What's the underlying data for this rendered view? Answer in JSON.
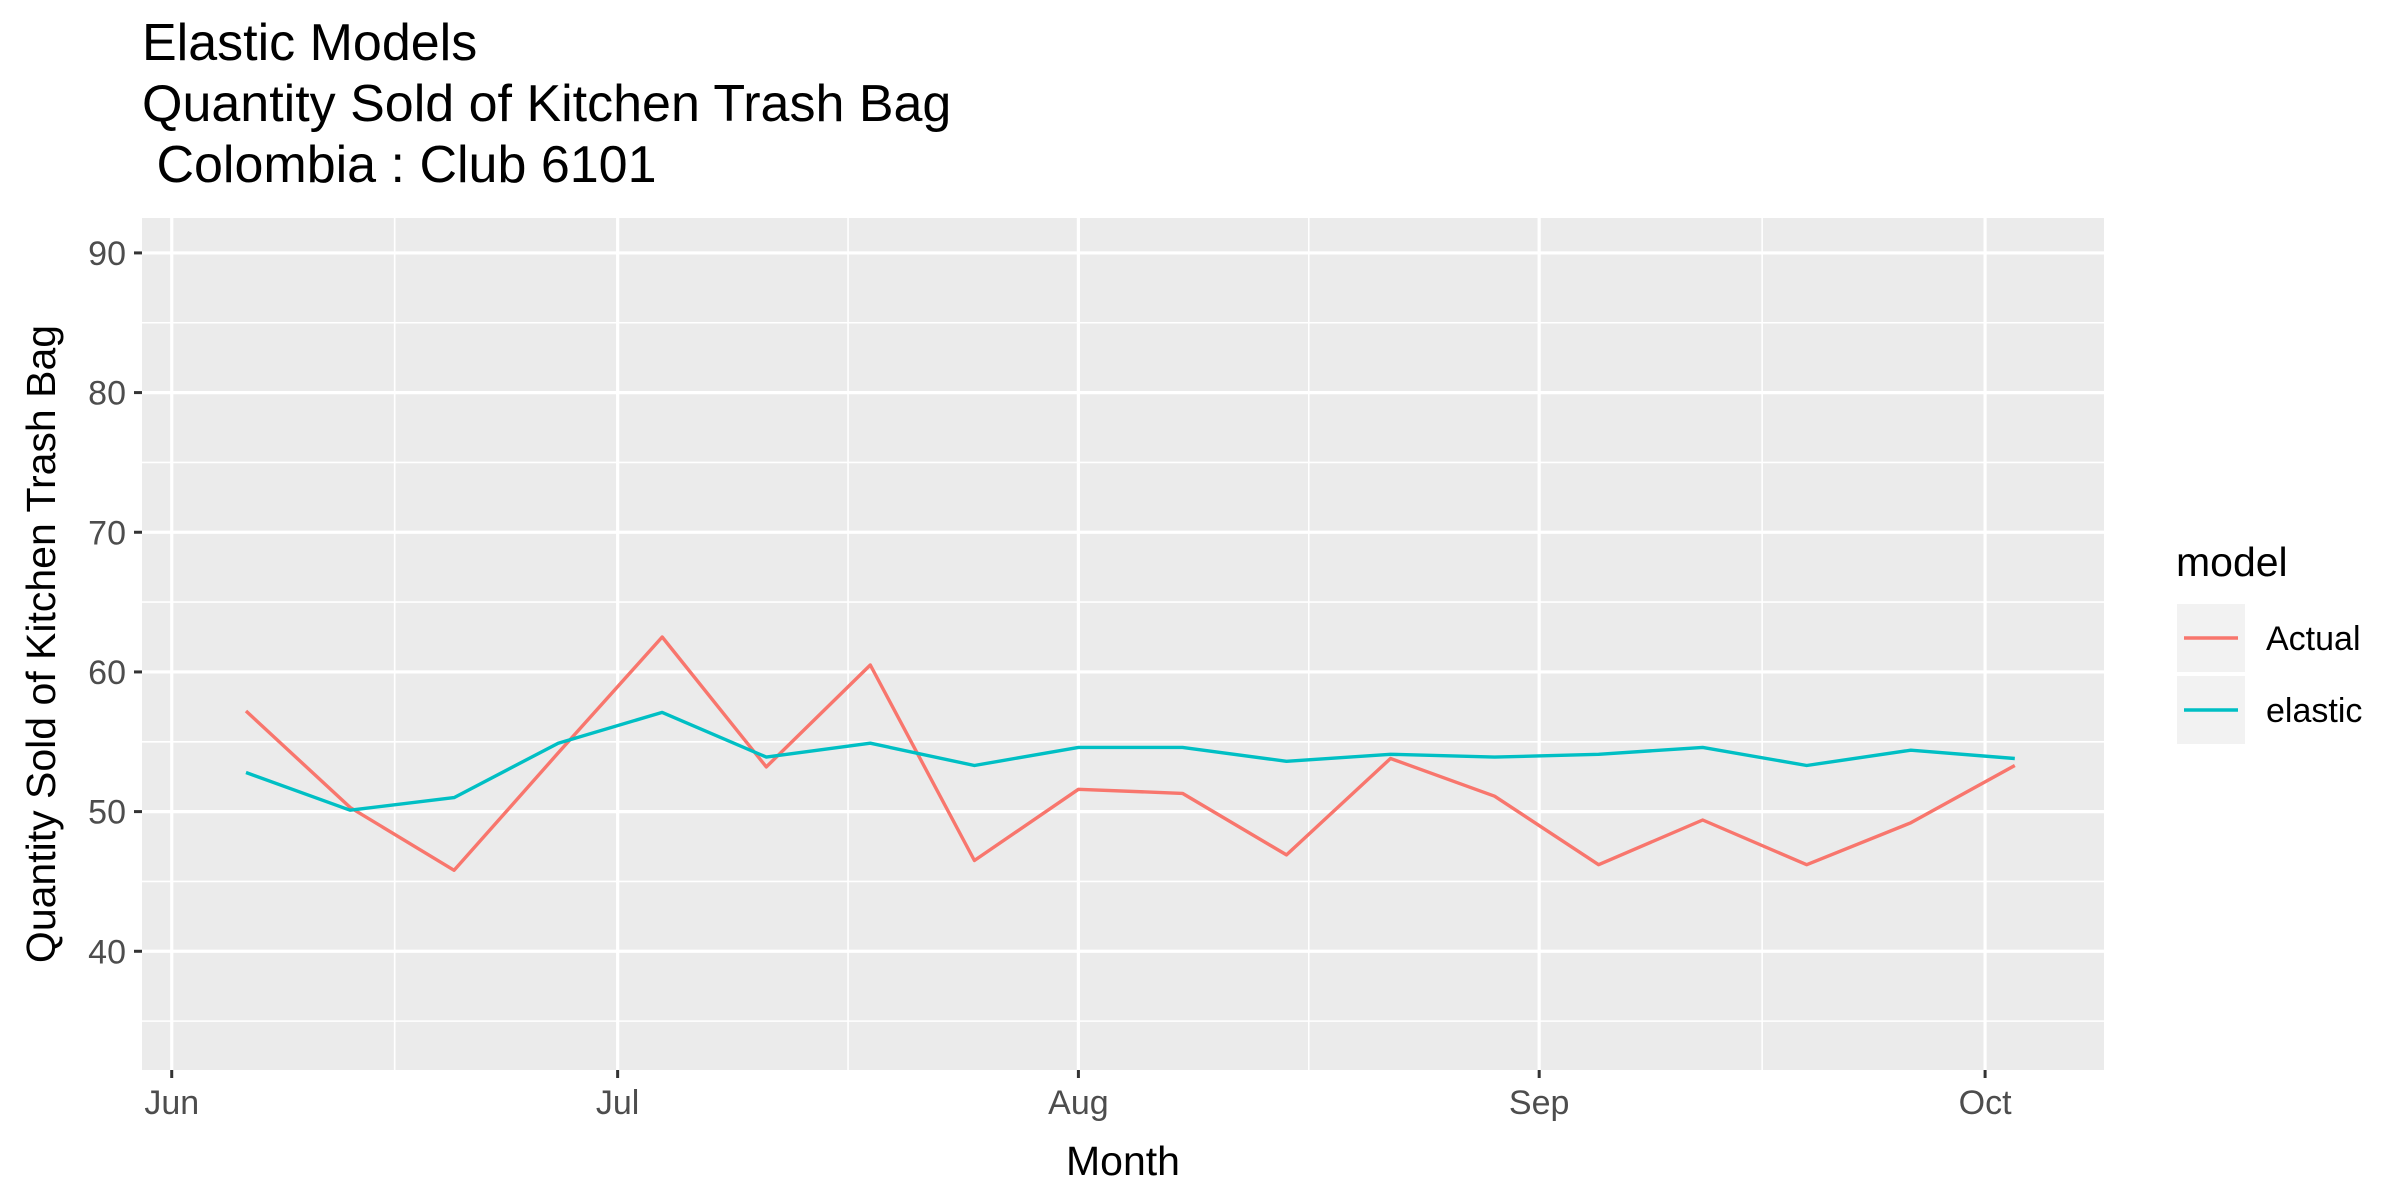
{
  "chart_data": {
    "type": "line",
    "title_lines": [
      "Elastic Models",
      "Quantity Sold of Kitchen Trash Bag",
      " Colombia : Club 6101"
    ],
    "xlabel": "Month",
    "ylabel": "Quantity Sold of Kitchen Trash Bag",
    "x_ticks": [
      {
        "date": "2019-06-01",
        "label": "Jun"
      },
      {
        "date": "2019-07-01",
        "label": "Jul"
      },
      {
        "date": "2019-08-01",
        "label": "Aug"
      },
      {
        "date": "2019-09-01",
        "label": "Sep"
      },
      {
        "date": "2019-10-01",
        "label": "Oct"
      }
    ],
    "y_ticks": [
      40,
      50,
      60,
      70,
      80,
      90
    ],
    "xlim": [
      "2019-05-30",
      "2019-10-09"
    ],
    "ylim": [
      31.5,
      92.5
    ],
    "grid": true,
    "legend": {
      "title": "model",
      "position": "right"
    },
    "x": [
      "2019-06-06",
      "2019-06-13",
      "2019-06-20",
      "2019-06-27",
      "2019-07-04",
      "2019-07-11",
      "2019-07-18",
      "2019-07-25",
      "2019-08-01",
      "2019-08-08",
      "2019-08-15",
      "2019-08-22",
      "2019-08-29",
      "2019-09-05",
      "2019-09-12",
      "2019-09-19",
      "2019-09-26",
      "2019-10-03"
    ],
    "series": [
      {
        "name": "Actual",
        "color": "#F8766D",
        "values": [
          57.2,
          50.3,
          45.8,
          54.2,
          62.5,
          53.2,
          60.5,
          46.5,
          51.6,
          51.3,
          46.9,
          53.8,
          51.1,
          46.2,
          49.4,
          46.2,
          49.2,
          53.3
        ]
      },
      {
        "name": "elastic",
        "color": "#00BFC4",
        "values": [
          52.8,
          50.1,
          51.0,
          54.9,
          57.1,
          53.9,
          54.9,
          53.3,
          54.6,
          54.6,
          53.6,
          54.1,
          53.9,
          54.1,
          54.6,
          53.3,
          54.4,
          53.8
        ]
      }
    ]
  }
}
